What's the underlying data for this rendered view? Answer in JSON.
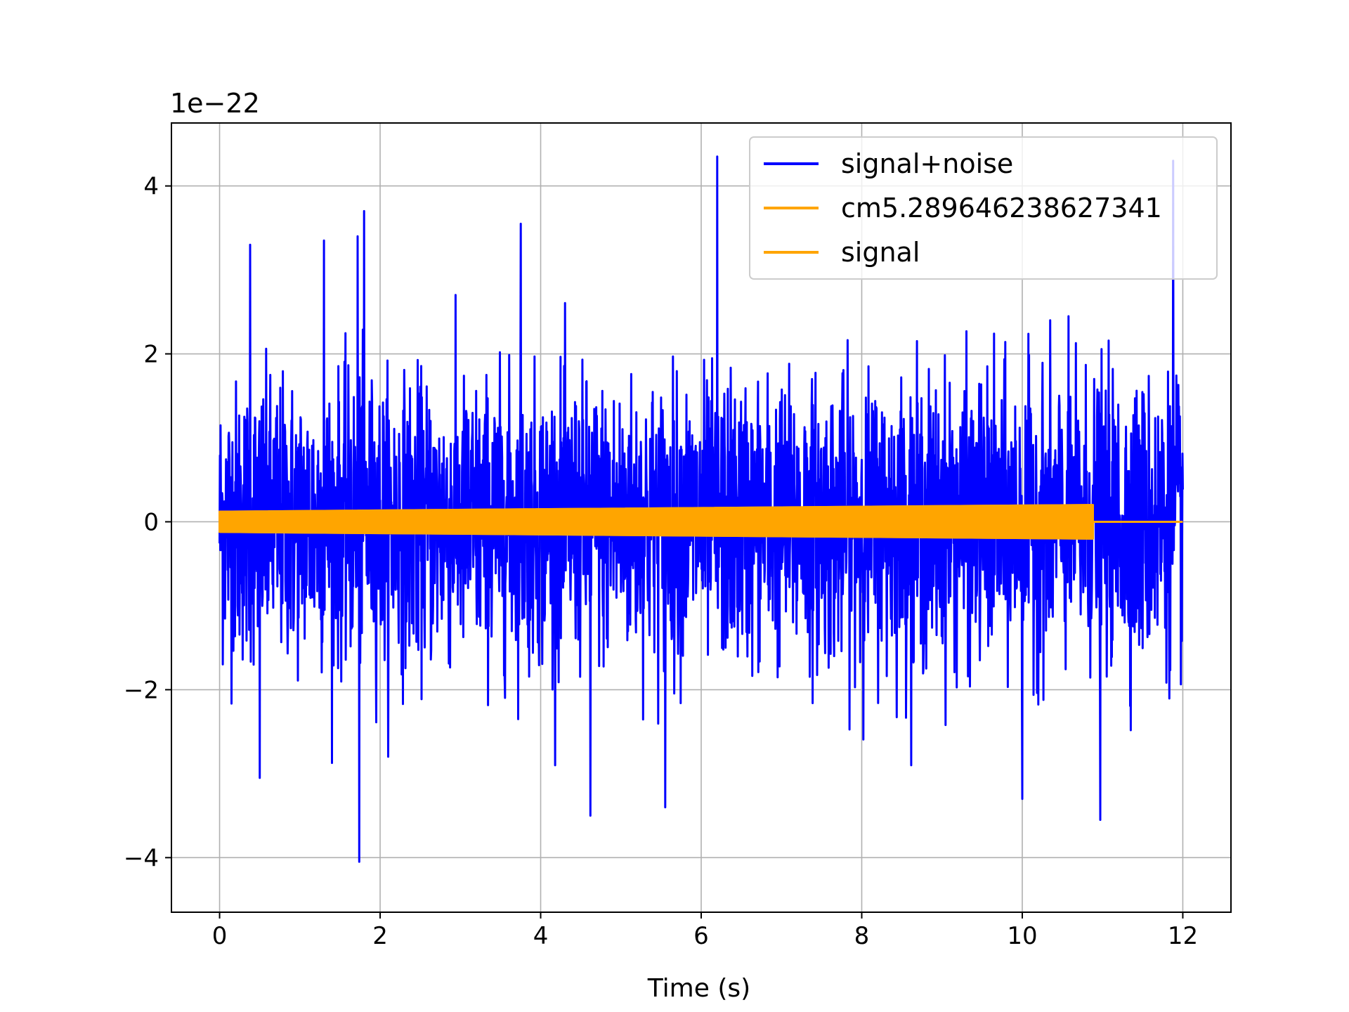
{
  "chart_data": {
    "type": "line",
    "title": "",
    "xlabel": "Time (s)",
    "ylabel": "",
    "y_offset_label": "1e−22",
    "xlim": [
      -0.6,
      12.6
    ],
    "ylim": [
      -4.65,
      4.75
    ],
    "x_ticks": [
      0,
      2,
      4,
      6,
      8,
      10,
      12
    ],
    "x_tick_labels": [
      "0",
      "2",
      "4",
      "6",
      "8",
      "10",
      "12"
    ],
    "y_ticks": [
      -4,
      -2,
      0,
      2,
      4
    ],
    "y_tick_labels": [
      "−4",
      "−2",
      "0",
      "2",
      "4"
    ],
    "grid": true,
    "legend_position": "top-right",
    "series": [
      {
        "name": "signal+noise",
        "color": "#0000ff",
        "x_range": [
          0,
          12
        ],
        "typical_amplitude": 1.5,
        "peaks": [
          {
            "x": 0.38,
            "y": 3.3
          },
          {
            "x": 1.3,
            "y": 3.35
          },
          {
            "x": 1.72,
            "y": 3.4
          },
          {
            "x": 1.8,
            "y": 3.7
          },
          {
            "x": 3.75,
            "y": 3.55
          },
          {
            "x": 6.2,
            "y": 4.35
          },
          {
            "x": 11.88,
            "y": 4.3
          }
        ],
        "troughs": [
          {
            "x": 1.74,
            "y": -4.05
          },
          {
            "x": 0.5,
            "y": -3.05
          },
          {
            "x": 4.62,
            "y": -3.5
          },
          {
            "x": 5.55,
            "y": -3.4
          },
          {
            "x": 10.97,
            "y": -3.55
          },
          {
            "x": 10.0,
            "y": -3.3
          }
        ]
      },
      {
        "name": "cm5.289646238627341",
        "color": "#ffa500",
        "x_range": [
          0,
          12
        ],
        "amplitude_start": 0.12,
        "amplitude_end": 0.2,
        "cutoff_x": 10.88
      },
      {
        "name": "signal",
        "color": "#ffa500",
        "x_range": [
          0,
          12
        ],
        "amplitude_start": 0.12,
        "amplitude_end": 0.2,
        "cutoff_x": 10.88
      }
    ]
  }
}
